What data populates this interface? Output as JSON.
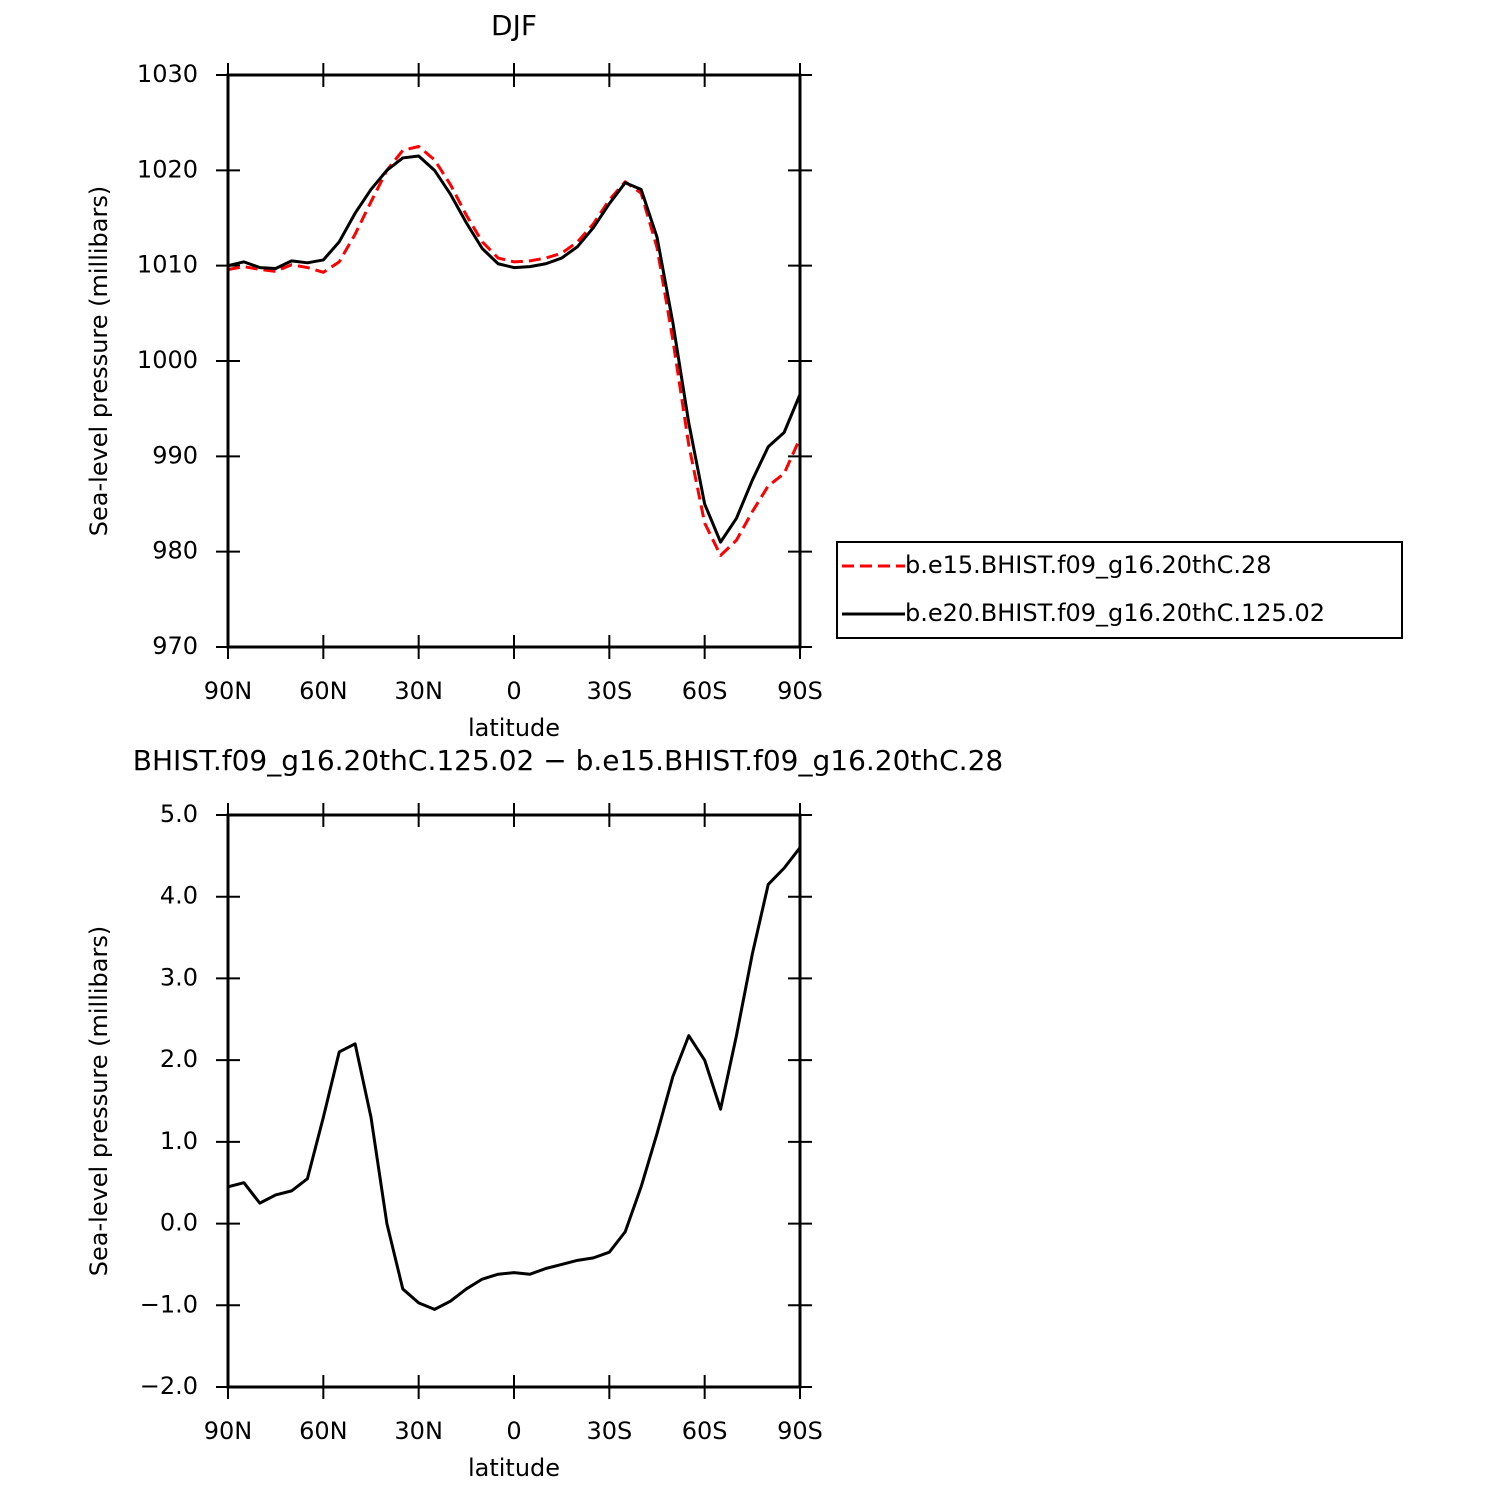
{
  "chart_data": [
    {
      "type": "line",
      "title": "DJF",
      "xlabel": "latitude",
      "ylabel": "Sea-level pressure (millibars)",
      "x": [
        90,
        85,
        80,
        75,
        70,
        65,
        60,
        55,
        50,
        45,
        40,
        35,
        30,
        25,
        20,
        15,
        10,
        5,
        0,
        -5,
        -10,
        -15,
        -20,
        -25,
        -30,
        -35,
        -40,
        -45,
        -50,
        -55,
        -60,
        -65,
        -70,
        -75,
        -80,
        -85,
        -90
      ],
      "series": [
        {
          "name": "b.e15.BHIST.f09_g16.20thC.28",
          "color": "#ff0000",
          "line_style": "dashed",
          "values": [
            1009.6,
            1009.9,
            1009.6,
            1009.4,
            1010.1,
            1009.8,
            1009.3,
            1010.4,
            1013.3,
            1016.7,
            1020.0,
            1022.1,
            1022.5,
            1021.1,
            1018.5,
            1015.3,
            1012.5,
            1010.8,
            1010.4,
            1010.5,
            1010.8,
            1011.3,
            1012.5,
            1014.4,
            1016.9,
            1018.8,
            1017.6,
            1011.9,
            1002.2,
            991.2,
            983.0,
            979.6,
            981.2,
            984.2,
            986.9,
            988.2,
            991.9
          ]
        },
        {
          "name": "b.e20.BHIST.f09_g16.20thC.125.02",
          "color": "#000000",
          "line_style": "solid",
          "values": [
            1010.0,
            1010.4,
            1009.8,
            1009.7,
            1010.5,
            1010.3,
            1010.6,
            1012.5,
            1015.5,
            1018.0,
            1020.0,
            1021.3,
            1021.5,
            1020.0,
            1017.5,
            1014.5,
            1011.8,
            1010.2,
            1009.8,
            1009.9,
            1010.2,
            1010.8,
            1012.0,
            1014.0,
            1016.5,
            1018.7,
            1018.0,
            1013.0,
            1004.0,
            993.5,
            985.0,
            981.0,
            983.5,
            987.5,
            991.0,
            992.5,
            996.5
          ]
        }
      ],
      "xlim": [
        90,
        -90
      ],
      "xticks": [
        {
          "value": 90,
          "label": "90N"
        },
        {
          "value": 60,
          "label": "60N"
        },
        {
          "value": 30,
          "label": "30N"
        },
        0,
        {
          "value": -30,
          "label": "30S"
        },
        {
          "value": -60,
          "label": "60S"
        },
        {
          "value": -90,
          "label": "90S"
        }
      ],
      "ylim": [
        970,
        1030
      ],
      "yticks": [
        970,
        980,
        990,
        1000,
        1010,
        1020,
        1030
      ],
      "legend": "right"
    },
    {
      "type": "line",
      "title": "BHIST.f09_g16.20thC.125.02 − b.e15.BHIST.f09_g16.20thC.28",
      "xlabel": "latitude",
      "ylabel": "Sea-level pressure (millibars)",
      "x": [
        90,
        85,
        80,
        75,
        70,
        65,
        60,
        55,
        50,
        45,
        40,
        35,
        30,
        25,
        20,
        15,
        10,
        5,
        0,
        -5,
        -10,
        -15,
        -20,
        -25,
        -30,
        -35,
        -40,
        -45,
        -50,
        -55,
        -60,
        -65,
        -70,
        -75,
        -80,
        -85,
        -90
      ],
      "color": "#000000",
      "values": [
        0.45,
        0.5,
        0.25,
        0.35,
        0.4,
        0.55,
        1.3,
        2.1,
        2.2,
        1.3,
        0.0,
        -0.8,
        -0.97,
        -1.05,
        -0.95,
        -0.8,
        -0.68,
        -0.62,
        -0.6,
        -0.62,
        -0.55,
        -0.5,
        -0.45,
        -0.42,
        -0.35,
        -0.1,
        0.45,
        1.1,
        1.8,
        2.3,
        2.0,
        1.4,
        2.3,
        3.3,
        4.15,
        4.35,
        4.6
      ],
      "xlim": [
        90,
        -90
      ],
      "xticks": [
        {
          "value": 90,
          "label": "90N"
        },
        {
          "value": 60,
          "label": "60N"
        },
        {
          "value": 30,
          "label": "30N"
        },
        0,
        {
          "value": -30,
          "label": "30S"
        },
        {
          "value": -60,
          "label": "60S"
        },
        {
          "value": -90,
          "label": "90S"
        }
      ],
      "ylim": [
        -2,
        5
      ],
      "yticks": [
        {
          "value": -2,
          "label": "−2.0"
        },
        {
          "value": -1,
          "label": "−1.0"
        },
        {
          "value": 0,
          "label": "0.0"
        },
        {
          "value": 1,
          "label": "1.0"
        },
        {
          "value": 2,
          "label": "2.0"
        },
        {
          "value": 3,
          "label": "3.0"
        },
        {
          "value": 4,
          "label": "4.0"
        },
        {
          "value": 5,
          "label": "5.0"
        }
      ]
    }
  ]
}
